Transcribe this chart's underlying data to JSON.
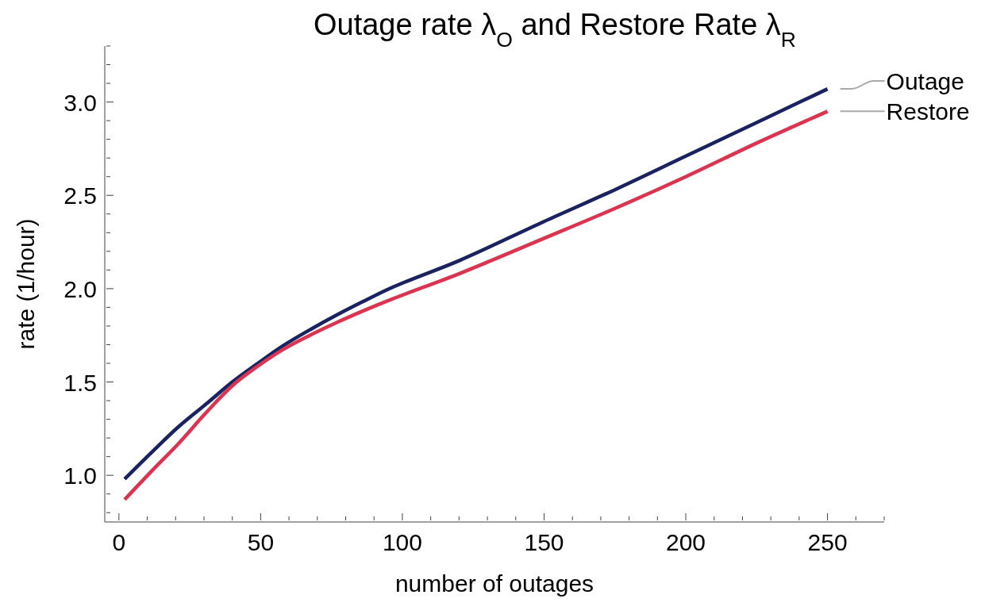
{
  "chart_data": {
    "type": "line",
    "title": "Outage rate λ$_{O}$ and Restore Rate λ$_{R}$",
    "xlabel": "number of outages",
    "ylabel": "rate  (1/hour)",
    "xlim": [
      -5,
      270
    ],
    "ylim": [
      0.75,
      3.3
    ],
    "xticks": [
      0,
      {
        "value": 10,
        "label": null
      },
      {
        "value": 20,
        "label": null
      },
      {
        "value": 30,
        "label": null
      },
      {
        "value": 40,
        "label": null
      },
      50,
      {
        "value": 60,
        "label": null
      },
      {
        "value": 70,
        "label": null
      },
      {
        "value": 80,
        "label": null
      },
      {
        "value": 90,
        "label": null
      },
      100,
      {
        "value": 110,
        "label": null
      },
      {
        "value": 120,
        "label": null
      },
      {
        "value": 130,
        "label": null
      },
      {
        "value": 140,
        "label": null
      },
      150,
      {
        "value": 160,
        "label": null
      },
      {
        "value": 170,
        "label": null
      },
      {
        "value": 180,
        "label": null
      },
      {
        "value": 190,
        "label": null
      },
      200,
      {
        "value": 210,
        "label": null
      },
      {
        "value": 220,
        "label": null
      },
      {
        "value": 230,
        "label": null
      },
      {
        "value": 240,
        "label": null
      },
      250,
      {
        "value": 260,
        "label": null
      },
      {
        "value": 270,
        "label": null
      }
    ],
    "yticks": [
      {
        "value": 0.8,
        "label": null
      },
      {
        "value": 0.9,
        "label": null
      },
      {
        "value": 1.0,
        "label": "1.0"
      },
      {
        "value": 1.1,
        "label": null
      },
      {
        "value": 1.2,
        "label": null
      },
      {
        "value": 1.3,
        "label": null
      },
      {
        "value": 1.4,
        "label": null
      },
      1.5,
      {
        "value": 1.6,
        "label": null
      },
      {
        "value": 1.7,
        "label": null
      },
      {
        "value": 1.8,
        "label": null
      },
      {
        "value": 1.9,
        "label": null
      },
      {
        "value": 2.0,
        "label": "2.0"
      },
      {
        "value": 2.1,
        "label": null
      },
      {
        "value": 2.2,
        "label": null
      },
      {
        "value": 2.3,
        "label": null
      },
      {
        "value": 2.4,
        "label": null
      },
      2.5,
      {
        "value": 2.6,
        "label": null
      },
      {
        "value": 2.7,
        "label": null
      },
      {
        "value": 2.8,
        "label": null
      },
      {
        "value": 2.9,
        "label": null
      },
      {
        "value": 3.0,
        "label": "3.0"
      },
      {
        "value": 3.1,
        "label": null
      },
      {
        "value": 3.2,
        "label": null
      },
      {
        "value": 3.3,
        "label": null
      }
    ],
    "x": [
      2,
      12,
      21,
      31,
      40,
      49,
      58,
      68,
      77,
      86,
      94,
      120,
      150,
      175,
      200,
      225,
      250
    ],
    "marker": "none",
    "line_style": "solid",
    "series": [
      {
        "name": "Outage",
        "color": "#1a2360",
        "values": [
          0.98,
          1.13,
          1.26,
          1.385,
          1.5,
          1.6,
          1.695,
          1.785,
          1.86,
          1.93,
          1.99,
          2.15,
          2.36,
          2.53,
          2.71,
          2.89,
          3.07
        ]
      },
      {
        "name": "Restore",
        "color": "#dc3450",
        "values": [
          0.87,
          1.03,
          1.17,
          1.34,
          1.48,
          1.585,
          1.675,
          1.755,
          1.82,
          1.88,
          1.93,
          2.08,
          2.27,
          2.43,
          2.6,
          2.78,
          2.95
        ]
      }
    ]
  }
}
